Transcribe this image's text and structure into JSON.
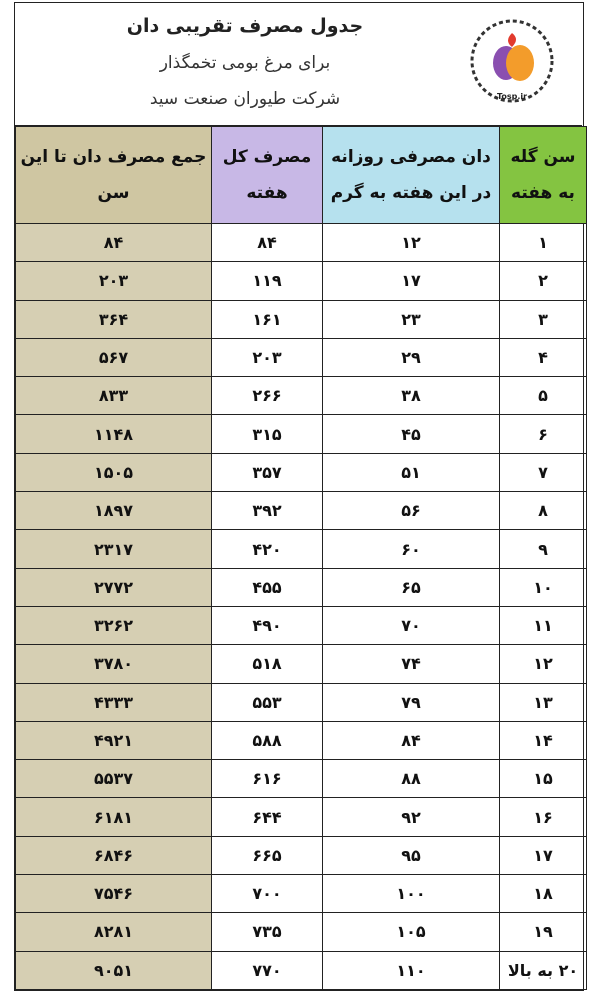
{
  "header": {
    "title": "جدول مصرف تقریبی دان",
    "subtitle": "برای مرغ بومی تخمگذار",
    "company": "شرکت طیوران صنعت سید",
    "logo_text": "Tosp.ir"
  },
  "table": {
    "columns": [
      "سن گله به هفته",
      "دان مصرفی روزانه در این هفته به گرم",
      "مصرف کل هفته",
      "جمع مصرف دان تا این سن"
    ],
    "rows": [
      [
        "۱",
        "۱۲",
        "۸۴",
        "۸۴"
      ],
      [
        "۲",
        "۱۷",
        "۱۱۹",
        "۲۰۳"
      ],
      [
        "۳",
        "۲۳",
        "۱۶۱",
        "۳۶۴"
      ],
      [
        "۴",
        "۲۹",
        "۲۰۳",
        "۵۶۷"
      ],
      [
        "۵",
        "۳۸",
        "۲۶۶",
        "۸۳۳"
      ],
      [
        "۶",
        "۴۵",
        "۳۱۵",
        "۱۱۴۸"
      ],
      [
        "۷",
        "۵۱",
        "۳۵۷",
        "۱۵۰۵"
      ],
      [
        "۸",
        "۵۶",
        "۳۹۲",
        "۱۸۹۷"
      ],
      [
        "۹",
        "۶۰",
        "۴۲۰",
        "۲۳۱۷"
      ],
      [
        "۱۰",
        "۶۵",
        "۴۵۵",
        "۲۷۷۲"
      ],
      [
        "۱۱",
        "۷۰",
        "۴۹۰",
        "۳۲۶۲"
      ],
      [
        "۱۲",
        "۷۴",
        "۵۱۸",
        "۳۷۸۰"
      ],
      [
        "۱۳",
        "۷۹",
        "۵۵۳",
        "۴۳۳۳"
      ],
      [
        "۱۴",
        "۸۴",
        "۵۸۸",
        "۴۹۲۱"
      ],
      [
        "۱۵",
        "۸۸",
        "۶۱۶",
        "۵۵۳۷"
      ],
      [
        "۱۶",
        "۹۲",
        "۶۴۴",
        "۶۱۸۱"
      ],
      [
        "۱۷",
        "۹۵",
        "۶۶۵",
        "۶۸۴۶"
      ],
      [
        "۱۸",
        "۱۰۰",
        "۷۰۰",
        "۷۵۴۶"
      ],
      [
        "۱۹",
        "۱۰۵",
        "۷۳۵",
        "۸۲۸۱"
      ],
      [
        "۲۰ به بالا",
        "۱۱۰",
        "۷۷۰",
        "۹۰۵۱"
      ]
    ]
  }
}
